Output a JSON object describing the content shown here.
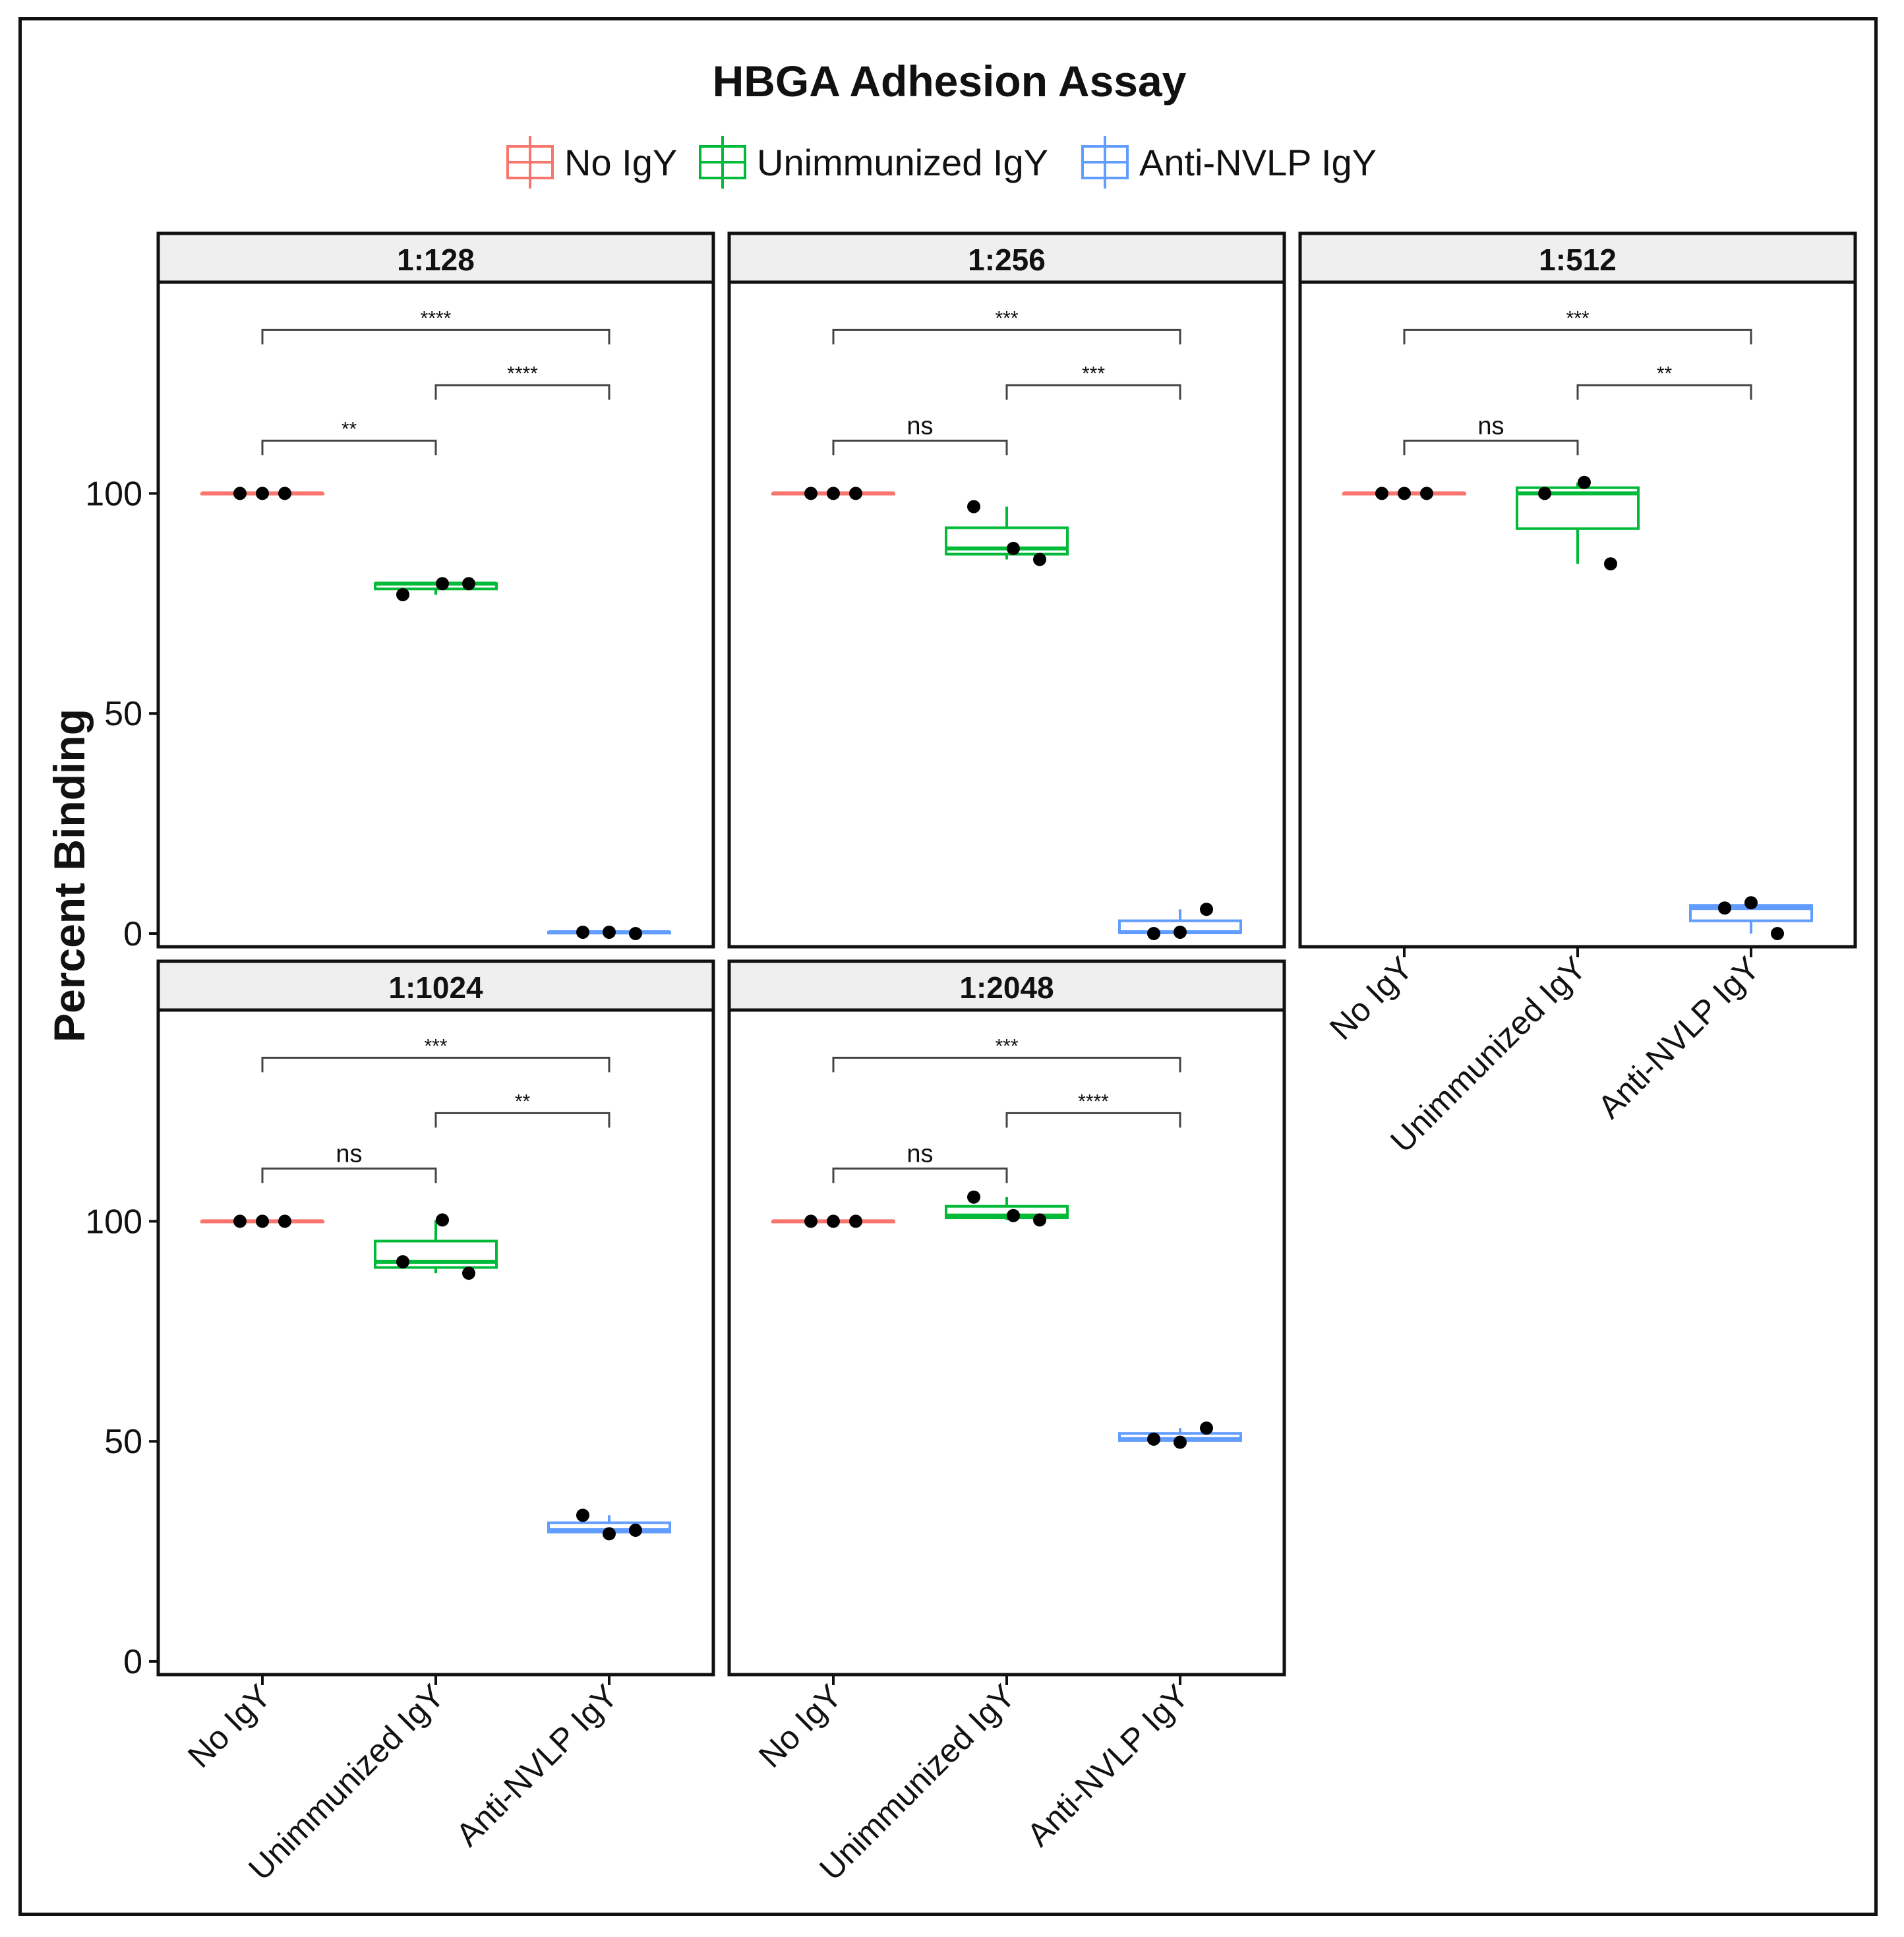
{
  "chart_data": {
    "type": "box",
    "title": "HBGA Adhesion Assay",
    "ylabel": "Percent Binding",
    "xlabel": "",
    "ylim": [
      -3,
      148
    ],
    "yticks": [
      0,
      50,
      100
    ],
    "categories": [
      "No IgY",
      "Unimmunized IgY",
      "Anti-NVLP IgY"
    ],
    "legend": [
      {
        "name": "No IgY",
        "color": "#F8766D"
      },
      {
        "name": "Unimmunized IgY",
        "color": "#00BA38"
      },
      {
        "name": "Anti-NVLP IgY",
        "color": "#619CFF"
      }
    ],
    "legend_position": "top",
    "panels": [
      {
        "title": "1:128",
        "groups": [
          {
            "category": "No IgY",
            "points": [
              100,
              100,
              100
            ],
            "box": {
              "min": 100,
              "q1": 100,
              "median": 100,
              "q3": 100,
              "max": 100
            }
          },
          {
            "category": "Unimmunized IgY",
            "points": [
              77,
              79.5,
              79.5
            ],
            "box": {
              "min": 77,
              "q1": 78.3,
              "median": 79.5,
              "q3": 79.5,
              "max": 79.5
            }
          },
          {
            "category": "Anti-NVLP IgY",
            "points": [
              0.3,
              0.3,
              0
            ],
            "box": {
              "min": 0,
              "q1": 0.1,
              "median": 0.3,
              "q3": 0.3,
              "max": 0.3
            }
          }
        ],
        "comparisons": [
          {
            "from": 0,
            "to": 1,
            "label": "**",
            "level": 1
          },
          {
            "from": 1,
            "to": 2,
            "label": "****",
            "level": 2
          },
          {
            "from": 0,
            "to": 2,
            "label": "****",
            "level": 3
          }
        ]
      },
      {
        "title": "1:256",
        "groups": [
          {
            "category": "No IgY",
            "points": [
              100,
              100,
              100
            ],
            "box": {
              "min": 100,
              "q1": 100,
              "median": 100,
              "q3": 100,
              "max": 100
            }
          },
          {
            "category": "Unimmunized IgY",
            "points": [
              97,
              87.5,
              85
            ],
            "box": {
              "min": 85,
              "q1": 86.2,
              "median": 87.5,
              "q3": 92.2,
              "max": 97
            }
          },
          {
            "category": "Anti-NVLP IgY",
            "points": [
              0,
              0.3,
              5.5
            ],
            "box": {
              "min": 0,
              "q1": 0.2,
              "median": 0.3,
              "q3": 2.9,
              "max": 5.5
            }
          }
        ],
        "comparisons": [
          {
            "from": 0,
            "to": 1,
            "label": "ns",
            "level": 1
          },
          {
            "from": 1,
            "to": 2,
            "label": "***",
            "level": 2
          },
          {
            "from": 0,
            "to": 2,
            "label": "***",
            "level": 3
          }
        ]
      },
      {
        "title": "1:512",
        "groups": [
          {
            "category": "No IgY",
            "points": [
              100,
              100,
              100
            ],
            "box": {
              "min": 100,
              "q1": 100,
              "median": 100,
              "q3": 100,
              "max": 100
            }
          },
          {
            "category": "Unimmunized IgY",
            "points": [
              100,
              102.5,
              84
            ],
            "box": {
              "min": 84,
              "q1": 92,
              "median": 100,
              "q3": 101.3,
              "max": 102.5
            }
          },
          {
            "category": "Anti-NVLP IgY",
            "points": [
              5.8,
              7,
              0
            ],
            "box": {
              "min": 0,
              "q1": 2.9,
              "median": 5.8,
              "q3": 6.4,
              "max": 7
            }
          }
        ],
        "comparisons": [
          {
            "from": 0,
            "to": 1,
            "label": "ns",
            "level": 1
          },
          {
            "from": 1,
            "to": 2,
            "label": "**",
            "level": 2
          },
          {
            "from": 0,
            "to": 2,
            "label": "***",
            "level": 3
          }
        ]
      },
      {
        "title": "1:1024",
        "groups": [
          {
            "category": "No IgY",
            "points": [
              100,
              100,
              100
            ],
            "box": {
              "min": 100,
              "q1": 100,
              "median": 100,
              "q3": 100,
              "max": 100
            }
          },
          {
            "category": "Unimmunized IgY",
            "points": [
              90.8,
              100.3,
              88.2
            ],
            "box": {
              "min": 88.2,
              "q1": 89.5,
              "median": 90.8,
              "q3": 95.5,
              "max": 100.3
            }
          },
          {
            "category": "Anti-NVLP IgY",
            "points": [
              33.2,
              29,
              29.8
            ],
            "box": {
              "min": 29,
              "q1": 29.4,
              "median": 29.8,
              "q3": 31.5,
              "max": 33.2
            }
          }
        ],
        "comparisons": [
          {
            "from": 0,
            "to": 1,
            "label": "ns",
            "level": 1
          },
          {
            "from": 1,
            "to": 2,
            "label": "**",
            "level": 2
          },
          {
            "from": 0,
            "to": 2,
            "label": "***",
            "level": 3
          }
        ]
      },
      {
        "title": "1:2048",
        "groups": [
          {
            "category": "No IgY",
            "points": [
              100,
              100,
              100
            ],
            "box": {
              "min": 100,
              "q1": 100,
              "median": 100,
              "q3": 100,
              "max": 100
            }
          },
          {
            "category": "Unimmunized IgY",
            "points": [
              105.5,
              101.3,
              100.3
            ],
            "box": {
              "min": 100.3,
              "q1": 100.8,
              "median": 101.3,
              "q3": 103.4,
              "max": 105.5
            }
          },
          {
            "category": "Anti-NVLP IgY",
            "points": [
              50.5,
              49.8,
              53
            ],
            "box": {
              "min": 49.8,
              "q1": 50.2,
              "median": 50.5,
              "q3": 51.8,
              "max": 53
            }
          }
        ],
        "comparisons": [
          {
            "from": 0,
            "to": 1,
            "label": "ns",
            "level": 1
          },
          {
            "from": 1,
            "to": 2,
            "label": "****",
            "level": 2
          },
          {
            "from": 0,
            "to": 2,
            "label": "***",
            "level": 3
          }
        ]
      }
    ]
  }
}
